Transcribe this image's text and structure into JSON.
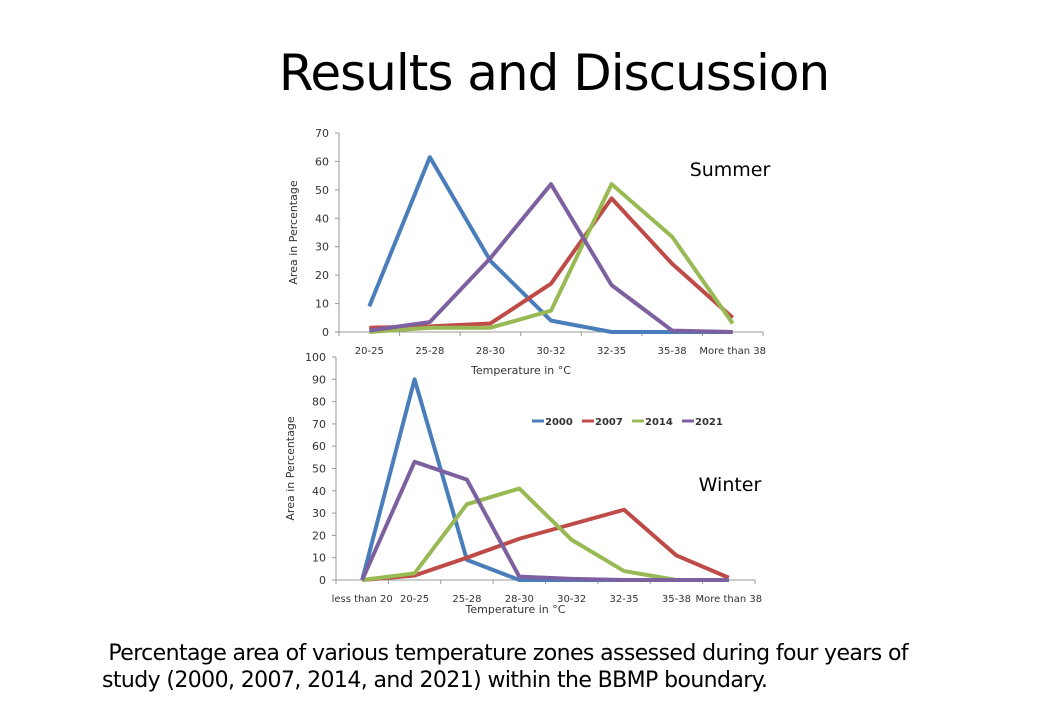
{
  "slide": {
    "title": "Results and Discussion",
    "caption_lines": [
      " Percentage area of various temperature zones assessed during four years of",
      "study (2000, 2007, 2014, and 2021) within the BBMP boundary."
    ]
  },
  "colors": {
    "2000": "#4a7ebb",
    "2007": "#be4b48",
    "2014": "#98b954",
    "2021": "#7d60a0"
  },
  "chart_data": [
    {
      "type": "line",
      "title": "Summer",
      "xlabel": "Temperature in °C",
      "ylabel": "Area in Percentage",
      "ylim": [
        0,
        70
      ],
      "yticks": [
        0,
        10,
        20,
        30,
        40,
        50,
        60,
        70
      ],
      "categories": [
        "20-25",
        "25-28",
        "28-30",
        "30-32",
        "32-35",
        "35-38",
        "More than 38"
      ],
      "series": [
        {
          "name": "2000",
          "values": [
            9,
            61.5,
            25,
            4,
            0,
            0,
            0
          ]
        },
        {
          "name": "2007",
          "values": [
            1.5,
            2,
            3,
            17,
            47,
            24,
            5
          ]
        },
        {
          "name": "2014",
          "values": [
            0,
            1.5,
            1.5,
            7.5,
            52,
            33.5,
            3
          ]
        },
        {
          "name": "2021",
          "values": [
            0.5,
            3.5,
            26,
            52,
            16.5,
            0.5,
            0
          ]
        }
      ]
    },
    {
      "type": "line",
      "title": "Winter",
      "xlabel": "Temperature in °C",
      "ylabel": "Area in Percentage",
      "ylim": [
        0,
        100
      ],
      "yticks": [
        0,
        10,
        20,
        30,
        40,
        50,
        60,
        70,
        80,
        90,
        100
      ],
      "legend": "top-right",
      "categories": [
        "less than 20",
        "20-25",
        "25-28",
        "28-30",
        "30-32",
        "32-35",
        "35-38",
        "More than 38"
      ],
      "series": [
        {
          "name": "2000",
          "values": [
            0,
            90,
            9,
            0,
            0,
            0,
            0,
            0
          ]
        },
        {
          "name": "2007",
          "values": [
            0,
            2,
            10,
            18.5,
            25,
            31.5,
            11,
            1
          ]
        },
        {
          "name": "2014",
          "values": [
            0,
            3,
            34,
            41,
            18,
            4,
            0,
            0
          ]
        },
        {
          "name": "2021",
          "values": [
            0,
            53,
            45,
            1.5,
            0.5,
            0,
            0,
            0
          ]
        }
      ]
    }
  ]
}
